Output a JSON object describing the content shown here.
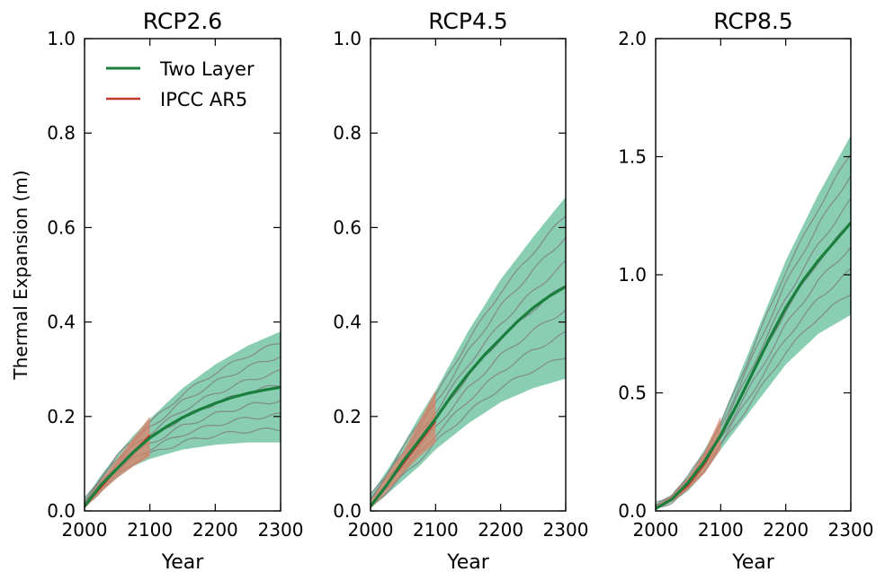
{
  "chart_data": [
    {
      "type": "line",
      "title": "RCP2.6",
      "xlabel": "Year",
      "ylabel": "Thermal Expansion (m)",
      "xlim": [
        2000,
        2300
      ],
      "ylim": [
        0.0,
        1.0
      ],
      "xticks": [
        "2000",
        "2100",
        "2200",
        "2300"
      ],
      "yticks": [
        "0.0",
        "0.2",
        "0.4",
        "0.6",
        "0.8",
        "1.0"
      ],
      "legend_position": "top-left",
      "series": [
        {
          "name": "Two Layer",
          "color": "#1a7f3c",
          "x": [
            2000,
            2025,
            2050,
            2075,
            2100,
            2125,
            2150,
            2175,
            2200,
            2225,
            2250,
            2275,
            2300
          ],
          "y": [
            0.01,
            0.055,
            0.09,
            0.125,
            0.155,
            0.178,
            0.198,
            0.214,
            0.228,
            0.24,
            0.249,
            0.256,
            0.262
          ]
        },
        {
          "name": "IPCC AR5",
          "color": "#c0392b",
          "x": [
            2000,
            2025,
            2050,
            2075,
            2100
          ],
          "y": [
            0.01,
            0.05,
            0.09,
            0.125,
            0.16
          ]
        }
      ],
      "band": {
        "color": "#74c6a6",
        "x": [
          2000,
          2025,
          2050,
          2075,
          2100,
          2150,
          2200,
          2250,
          2300
        ],
        "lower": [
          0.005,
          0.04,
          0.07,
          0.095,
          0.11,
          0.13,
          0.14,
          0.145,
          0.145
        ],
        "upper": [
          0.025,
          0.075,
          0.12,
          0.16,
          0.195,
          0.26,
          0.31,
          0.35,
          0.38
        ]
      },
      "ar5_band": {
        "color": "#d9826a",
        "x": [
          2000,
          2025,
          2050,
          2075,
          2100
        ],
        "lower": [
          0.005,
          0.04,
          0.07,
          0.095,
          0.115
        ],
        "upper": [
          0.015,
          0.065,
          0.11,
          0.155,
          0.2
        ]
      }
    },
    {
      "type": "line",
      "title": "RCP4.5",
      "xlabel": "Year",
      "xlim": [
        2000,
        2300
      ],
      "ylim": [
        0.0,
        1.0
      ],
      "xticks": [
        "2000",
        "2100",
        "2200",
        "2300"
      ],
      "yticks": [
        "0.0",
        "0.2",
        "0.4",
        "0.6",
        "0.8",
        "1.0"
      ],
      "series": [
        {
          "name": "Two Layer",
          "color": "#1a7f3c",
          "x": [
            2000,
            2025,
            2050,
            2075,
            2100,
            2125,
            2150,
            2175,
            2200,
            2225,
            2250,
            2275,
            2300
          ],
          "y": [
            0.01,
            0.055,
            0.105,
            0.15,
            0.195,
            0.245,
            0.29,
            0.33,
            0.365,
            0.4,
            0.43,
            0.455,
            0.475
          ]
        },
        {
          "name": "IPCC AR5",
          "color": "#c0392b",
          "x": [
            2000,
            2025,
            2050,
            2075,
            2100
          ],
          "y": [
            0.01,
            0.055,
            0.1,
            0.145,
            0.19
          ]
        }
      ],
      "band": {
        "color": "#74c6a6",
        "x": [
          2000,
          2025,
          2050,
          2075,
          2100,
          2150,
          2200,
          2250,
          2300
        ],
        "lower": [
          0.005,
          0.035,
          0.065,
          0.095,
          0.13,
          0.185,
          0.23,
          0.26,
          0.28
        ],
        "upper": [
          0.035,
          0.085,
          0.14,
          0.2,
          0.255,
          0.38,
          0.49,
          0.58,
          0.665
        ]
      },
      "ar5_band": {
        "color": "#d9826a",
        "x": [
          2000,
          2025,
          2050,
          2075,
          2100
        ],
        "lower": [
          0.005,
          0.04,
          0.08,
          0.115,
          0.145
        ],
        "upper": [
          0.02,
          0.075,
          0.125,
          0.19,
          0.255
        ]
      }
    },
    {
      "type": "line",
      "title": "RCP8.5",
      "xlabel": "Year",
      "xlim": [
        2000,
        2300
      ],
      "ylim": [
        0.0,
        2.0
      ],
      "xticks": [
        "2000",
        "2100",
        "2200",
        "2300"
      ],
      "yticks": [
        "0.0",
        "0.5",
        "1.0",
        "1.5",
        "2.0"
      ],
      "series": [
        {
          "name": "Two Layer",
          "color": "#1a7f3c",
          "x": [
            2000,
            2025,
            2050,
            2075,
            2100,
            2125,
            2150,
            2175,
            2200,
            2225,
            2250,
            2275,
            2300
          ],
          "y": [
            0.01,
            0.05,
            0.12,
            0.21,
            0.32,
            0.45,
            0.59,
            0.73,
            0.86,
            0.97,
            1.06,
            1.14,
            1.22
          ]
        },
        {
          "name": "IPCC AR5",
          "color": "#c0392b",
          "x": [
            2000,
            2025,
            2050,
            2075,
            2100
          ],
          "y": [
            0.01,
            0.05,
            0.11,
            0.2,
            0.32
          ]
        }
      ],
      "band": {
        "color": "#74c6a6",
        "x": [
          2000,
          2025,
          2050,
          2075,
          2100,
          2150,
          2200,
          2250,
          2300
        ],
        "lower": [
          0.005,
          0.035,
          0.085,
          0.16,
          0.26,
          0.44,
          0.62,
          0.75,
          0.83
        ],
        "upper": [
          0.03,
          0.07,
          0.15,
          0.26,
          0.38,
          0.72,
          1.06,
          1.34,
          1.59
        ]
      },
      "ar5_band": {
        "color": "#d9826a",
        "x": [
          2000,
          2025,
          2050,
          2075,
          2100
        ],
        "lower": [
          0.005,
          0.04,
          0.09,
          0.16,
          0.26
        ],
        "upper": [
          0.02,
          0.065,
          0.14,
          0.25,
          0.4
        ]
      }
    }
  ]
}
